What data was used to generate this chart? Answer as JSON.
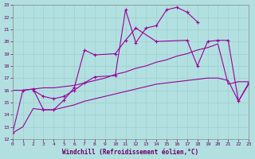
{
  "xlabel": "Windchill (Refroidissement éolien,°C)",
  "background_color": "#b2e0e0",
  "grid_color": "#9dcfcf",
  "line_color": "#990099",
  "xlim": [
    0,
    23
  ],
  "ylim": [
    12,
    23
  ],
  "xticks": [
    0,
    1,
    2,
    3,
    4,
    5,
    6,
    7,
    8,
    9,
    10,
    11,
    12,
    13,
    14,
    15,
    16,
    17,
    18,
    19,
    20,
    21,
    22,
    23
  ],
  "yticks": [
    12,
    13,
    14,
    15,
    16,
    17,
    18,
    19,
    20,
    21,
    22,
    23
  ],
  "line1_x": [
    0,
    1,
    2,
    3,
    4,
    5,
    6,
    7,
    8,
    10,
    11,
    12,
    14,
    17,
    18,
    19,
    20,
    21,
    22,
    23
  ],
  "line1_y": [
    12.5,
    16.0,
    16.1,
    14.4,
    14.4,
    15.2,
    16.2,
    19.3,
    18.9,
    19.0,
    20.1,
    21.1,
    20.0,
    20.1,
    18.0,
    20.0,
    20.1,
    20.1,
    15.1,
    16.6
  ],
  "line2_x": [
    2,
    3,
    4,
    5,
    6,
    7,
    8,
    10,
    11,
    12,
    13,
    14,
    15,
    16,
    17,
    18
  ],
  "line2_y": [
    16.0,
    15.5,
    15.3,
    15.5,
    16.0,
    16.6,
    17.1,
    17.2,
    22.6,
    19.9,
    21.1,
    21.3,
    22.6,
    22.8,
    22.4,
    21.6
  ],
  "line3_x": [
    0,
    1,
    2,
    3,
    4,
    5,
    6,
    7,
    8,
    9,
    10,
    11,
    12,
    13,
    14,
    15,
    16,
    17,
    18,
    19,
    20,
    21,
    22,
    23
  ],
  "line3_y": [
    16.0,
    16.0,
    16.1,
    16.2,
    16.2,
    16.3,
    16.4,
    16.6,
    16.8,
    17.0,
    17.3,
    17.5,
    17.8,
    18.0,
    18.3,
    18.5,
    18.8,
    19.0,
    19.3,
    19.5,
    19.8,
    16.5,
    16.7,
    16.7
  ],
  "line4_x": [
    0,
    1,
    2,
    3,
    4,
    5,
    6,
    7,
    8,
    9,
    10,
    11,
    12,
    13,
    14,
    15,
    16,
    17,
    18,
    19,
    20,
    21,
    22,
    23
  ],
  "line4_y": [
    12.5,
    13.0,
    14.5,
    14.4,
    14.4,
    14.6,
    14.8,
    15.1,
    15.3,
    15.5,
    15.7,
    15.9,
    16.1,
    16.3,
    16.5,
    16.6,
    16.7,
    16.8,
    16.9,
    17.0,
    17.0,
    16.8,
    15.1,
    16.5
  ]
}
